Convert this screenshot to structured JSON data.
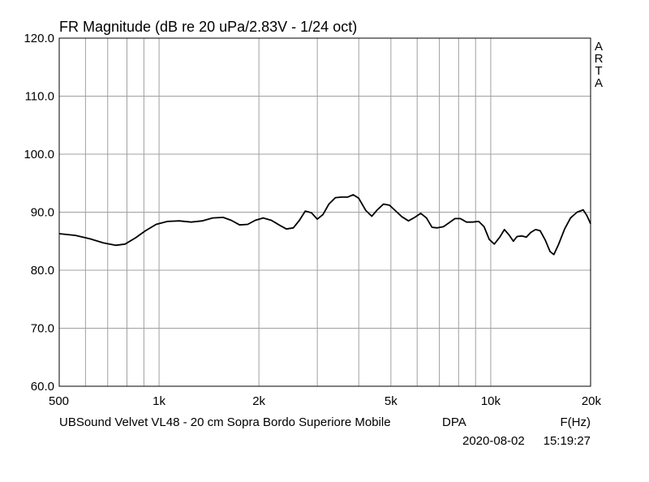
{
  "chart_data": {
    "type": "line",
    "title": "FR Magnitude (dB re 20 uPa/2.83V - 1/24 oct)",
    "xlabel": "F(Hz)",
    "ylabel": "",
    "xscale": "log",
    "xlim": [
      500,
      20000
    ],
    "ylim": [
      60,
      120
    ],
    "grid": true,
    "legend": "none",
    "x_ticks": [
      500,
      1000,
      2000,
      5000,
      10000,
      20000
    ],
    "x_tick_labels": [
      "500",
      "1k",
      "2k",
      "5k",
      "10k",
      "20k"
    ],
    "y_ticks": [
      60,
      70,
      80,
      90,
      100,
      110,
      120
    ],
    "y_tick_labels": [
      "60.0",
      "70.0",
      "80.0",
      "90.0",
      "100.0",
      "110.0",
      "120.0"
    ],
    "series": [
      {
        "color": "#000000",
        "points": [
          [
            500,
            86.3
          ],
          [
            560,
            86.0
          ],
          [
            620,
            85.4
          ],
          [
            680,
            84.7
          ],
          [
            740,
            84.3
          ],
          [
            790,
            84.5
          ],
          [
            850,
            85.6
          ],
          [
            910,
            86.8
          ],
          [
            980,
            87.9
          ],
          [
            1060,
            88.4
          ],
          [
            1150,
            88.5
          ],
          [
            1250,
            88.3
          ],
          [
            1350,
            88.5
          ],
          [
            1450,
            89.0
          ],
          [
            1560,
            89.1
          ],
          [
            1650,
            88.6
          ],
          [
            1750,
            87.8
          ],
          [
            1850,
            87.9
          ],
          [
            1950,
            88.6
          ],
          [
            2060,
            89.0
          ],
          [
            2180,
            88.6
          ],
          [
            2300,
            87.8
          ],
          [
            2420,
            87.1
          ],
          [
            2540,
            87.3
          ],
          [
            2650,
            88.6
          ],
          [
            2760,
            90.2
          ],
          [
            2880,
            89.9
          ],
          [
            3000,
            88.8
          ],
          [
            3120,
            89.6
          ],
          [
            3250,
            91.4
          ],
          [
            3400,
            92.5
          ],
          [
            3550,
            92.6
          ],
          [
            3700,
            92.6
          ],
          [
            3850,
            93.0
          ],
          [
            4000,
            92.4
          ],
          [
            4200,
            90.3
          ],
          [
            4380,
            89.3
          ],
          [
            4550,
            90.4
          ],
          [
            4750,
            91.4
          ],
          [
            4950,
            91.2
          ],
          [
            5150,
            90.3
          ],
          [
            5400,
            89.2
          ],
          [
            5650,
            88.5
          ],
          [
            5900,
            89.1
          ],
          [
            6150,
            89.8
          ],
          [
            6400,
            89.0
          ],
          [
            6650,
            87.4
          ],
          [
            6900,
            87.3
          ],
          [
            7200,
            87.5
          ],
          [
            7500,
            88.2
          ],
          [
            7800,
            88.9
          ],
          [
            8100,
            88.9
          ],
          [
            8450,
            88.3
          ],
          [
            8800,
            88.3
          ],
          [
            9200,
            88.4
          ],
          [
            9550,
            87.5
          ],
          [
            9900,
            85.3
          ],
          [
            10250,
            84.5
          ],
          [
            10650,
            85.7
          ],
          [
            11000,
            87.0
          ],
          [
            11350,
            86.1
          ],
          [
            11700,
            85.0
          ],
          [
            12000,
            85.8
          ],
          [
            12400,
            85.9
          ],
          [
            12800,
            85.7
          ],
          [
            13200,
            86.5
          ],
          [
            13650,
            87.0
          ],
          [
            14100,
            86.8
          ],
          [
            14600,
            85.2
          ],
          [
            15100,
            83.2
          ],
          [
            15500,
            82.7
          ],
          [
            16000,
            84.4
          ],
          [
            16700,
            87.1
          ],
          [
            17400,
            89.0
          ],
          [
            18200,
            90.0
          ],
          [
            19000,
            90.4
          ],
          [
            19500,
            89.4
          ],
          [
            20000,
            88.0
          ]
        ]
      }
    ]
  },
  "texts": {
    "title": "FR Magnitude (dB re 20 uPa/2.83V - 1/24 oct)",
    "watermark": [
      "A",
      "R",
      "T",
      "A"
    ],
    "description": "UBSound Velvet VL48 - 20 cm Sopra Bordo Superiore Mobile",
    "mode": "DPA",
    "x_unit": "F(Hz)",
    "date": "2020-08-02",
    "time": "15:19:27"
  }
}
